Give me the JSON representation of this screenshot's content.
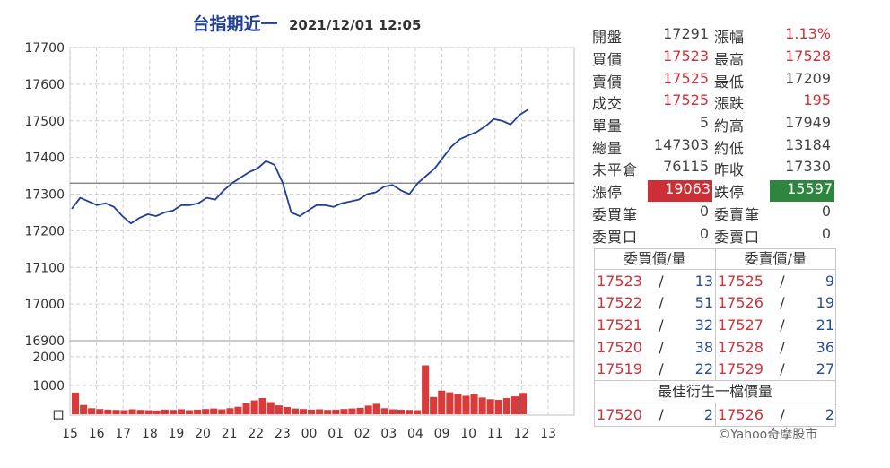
{
  "chart_data": [
    {
      "type": "line",
      "title": "台指期近一",
      "timestamp": "2021/12/01 12:05",
      "ylim": [
        16900,
        17700
      ],
      "yticks": [
        17700,
        17600,
        17500,
        17400,
        17300,
        17200,
        17100,
        17000,
        16900
      ],
      "xticks": [
        "15",
        "16",
        "17",
        "18",
        "19",
        "20",
        "21",
        "22",
        "23",
        "00",
        "01",
        "02",
        "03",
        "04",
        "09",
        "10",
        "11",
        "12",
        "13"
      ],
      "reference_line": 17330,
      "series": [
        {
          "values": [
            17260,
            17290,
            17280,
            17270,
            17275,
            17265,
            17240,
            17220,
            17235,
            17245,
            17240,
            17250,
            17255,
            17270,
            17270,
            17275,
            17290,
            17285,
            17310,
            17330,
            17345,
            17360,
            17370,
            17390,
            17380,
            17330,
            17250,
            17240,
            17255,
            17270,
            17270,
            17265,
            17275,
            17280,
            17285,
            17300,
            17305,
            17320,
            17325,
            17310,
            17300,
            17330,
            17350,
            17370,
            17400,
            17430,
            17450,
            17460,
            17470,
            17485,
            17505,
            17500,
            17490,
            17515,
            17530
          ]
        }
      ],
      "grid": true
    },
    {
      "type": "bar",
      "title": "",
      "ylim": [
        0,
        2400
      ],
      "yticks": [
        "2000",
        "1000",
        "口"
      ],
      "series": [
        {
          "values": [
            750,
            320,
            210,
            180,
            160,
            150,
            140,
            170,
            150,
            140,
            130,
            160,
            150,
            170,
            140,
            160,
            180,
            200,
            170,
            210,
            260,
            380,
            480,
            560,
            420,
            310,
            250,
            200,
            180,
            160,
            170,
            150,
            160,
            180,
            200,
            220,
            300,
            360,
            210,
            170,
            160,
            150,
            140,
            1700,
            600,
            820,
            760,
            690,
            640,
            700,
            580,
            520,
            500,
            560,
            620,
            740
          ]
        }
      ]
    }
  ],
  "stats": [
    {
      "l1": "開盤",
      "v1": "17291",
      "c1": "",
      "l2": "漲幅",
      "v2": "1.13%",
      "c2": "red"
    },
    {
      "l1": "買價",
      "v1": "17523",
      "c1": "red",
      "l2": "最高",
      "v2": "17528",
      "c2": "red"
    },
    {
      "l1": "賣價",
      "v1": "17525",
      "c1": "red",
      "l2": "最低",
      "v2": "17209",
      "c2": ""
    },
    {
      "l1": "成交",
      "v1": "17525",
      "c1": "red",
      "l2": "漲跌",
      "v2": "195",
      "c2": "red"
    },
    {
      "l1": "單量",
      "v1": "5",
      "c1": "",
      "l2": "約高",
      "v2": "17949",
      "c2": ""
    },
    {
      "l1": "總量",
      "v1": "147303",
      "c1": "",
      "l2": "約低",
      "v2": "13184",
      "c2": ""
    },
    {
      "l1": "未平倉",
      "v1": "76115",
      "c1": "",
      "l2": "昨收",
      "v2": "17330",
      "c2": ""
    },
    {
      "l1": "漲停",
      "v1": "19063",
      "c1": "box-red",
      "l2": "跌停",
      "v2": "15597",
      "c2": "box-green"
    },
    {
      "l1": "委買筆",
      "v1": "0",
      "c1": "",
      "l2": "委賣筆",
      "v2": "0",
      "c2": ""
    },
    {
      "l1": "委買口",
      "v1": "0",
      "c1": "",
      "l2": "委賣口",
      "v2": "0",
      "c2": ""
    }
  ],
  "book": {
    "buy_header": "委買價/量",
    "sell_header": "委賣價/量",
    "buys": [
      {
        "p": "17523",
        "q": "13"
      },
      {
        "p": "17522",
        "q": "51"
      },
      {
        "p": "17521",
        "q": "32"
      },
      {
        "p": "17520",
        "q": "38"
      },
      {
        "p": "17519",
        "q": "22"
      }
    ],
    "sells": [
      {
        "p": "17525",
        "q": "9"
      },
      {
        "p": "17526",
        "q": "19"
      },
      {
        "p": "17527",
        "q": "21"
      },
      {
        "p": "17528",
        "q": "36"
      },
      {
        "p": "17529",
        "q": "27"
      }
    ],
    "best_header": "最佳衍生一檔價量",
    "best_buy": {
      "p": "17520",
      "q": "2"
    },
    "best_sell": {
      "p": "17526",
      "q": "2"
    },
    "sep": "/"
  },
  "copyright": "©Yahoo奇摩股市",
  "colors": {
    "line": "#1f3f98",
    "volume": "#d93a3a",
    "grid": "#cfcfcf",
    "ref": "#777777"
  }
}
